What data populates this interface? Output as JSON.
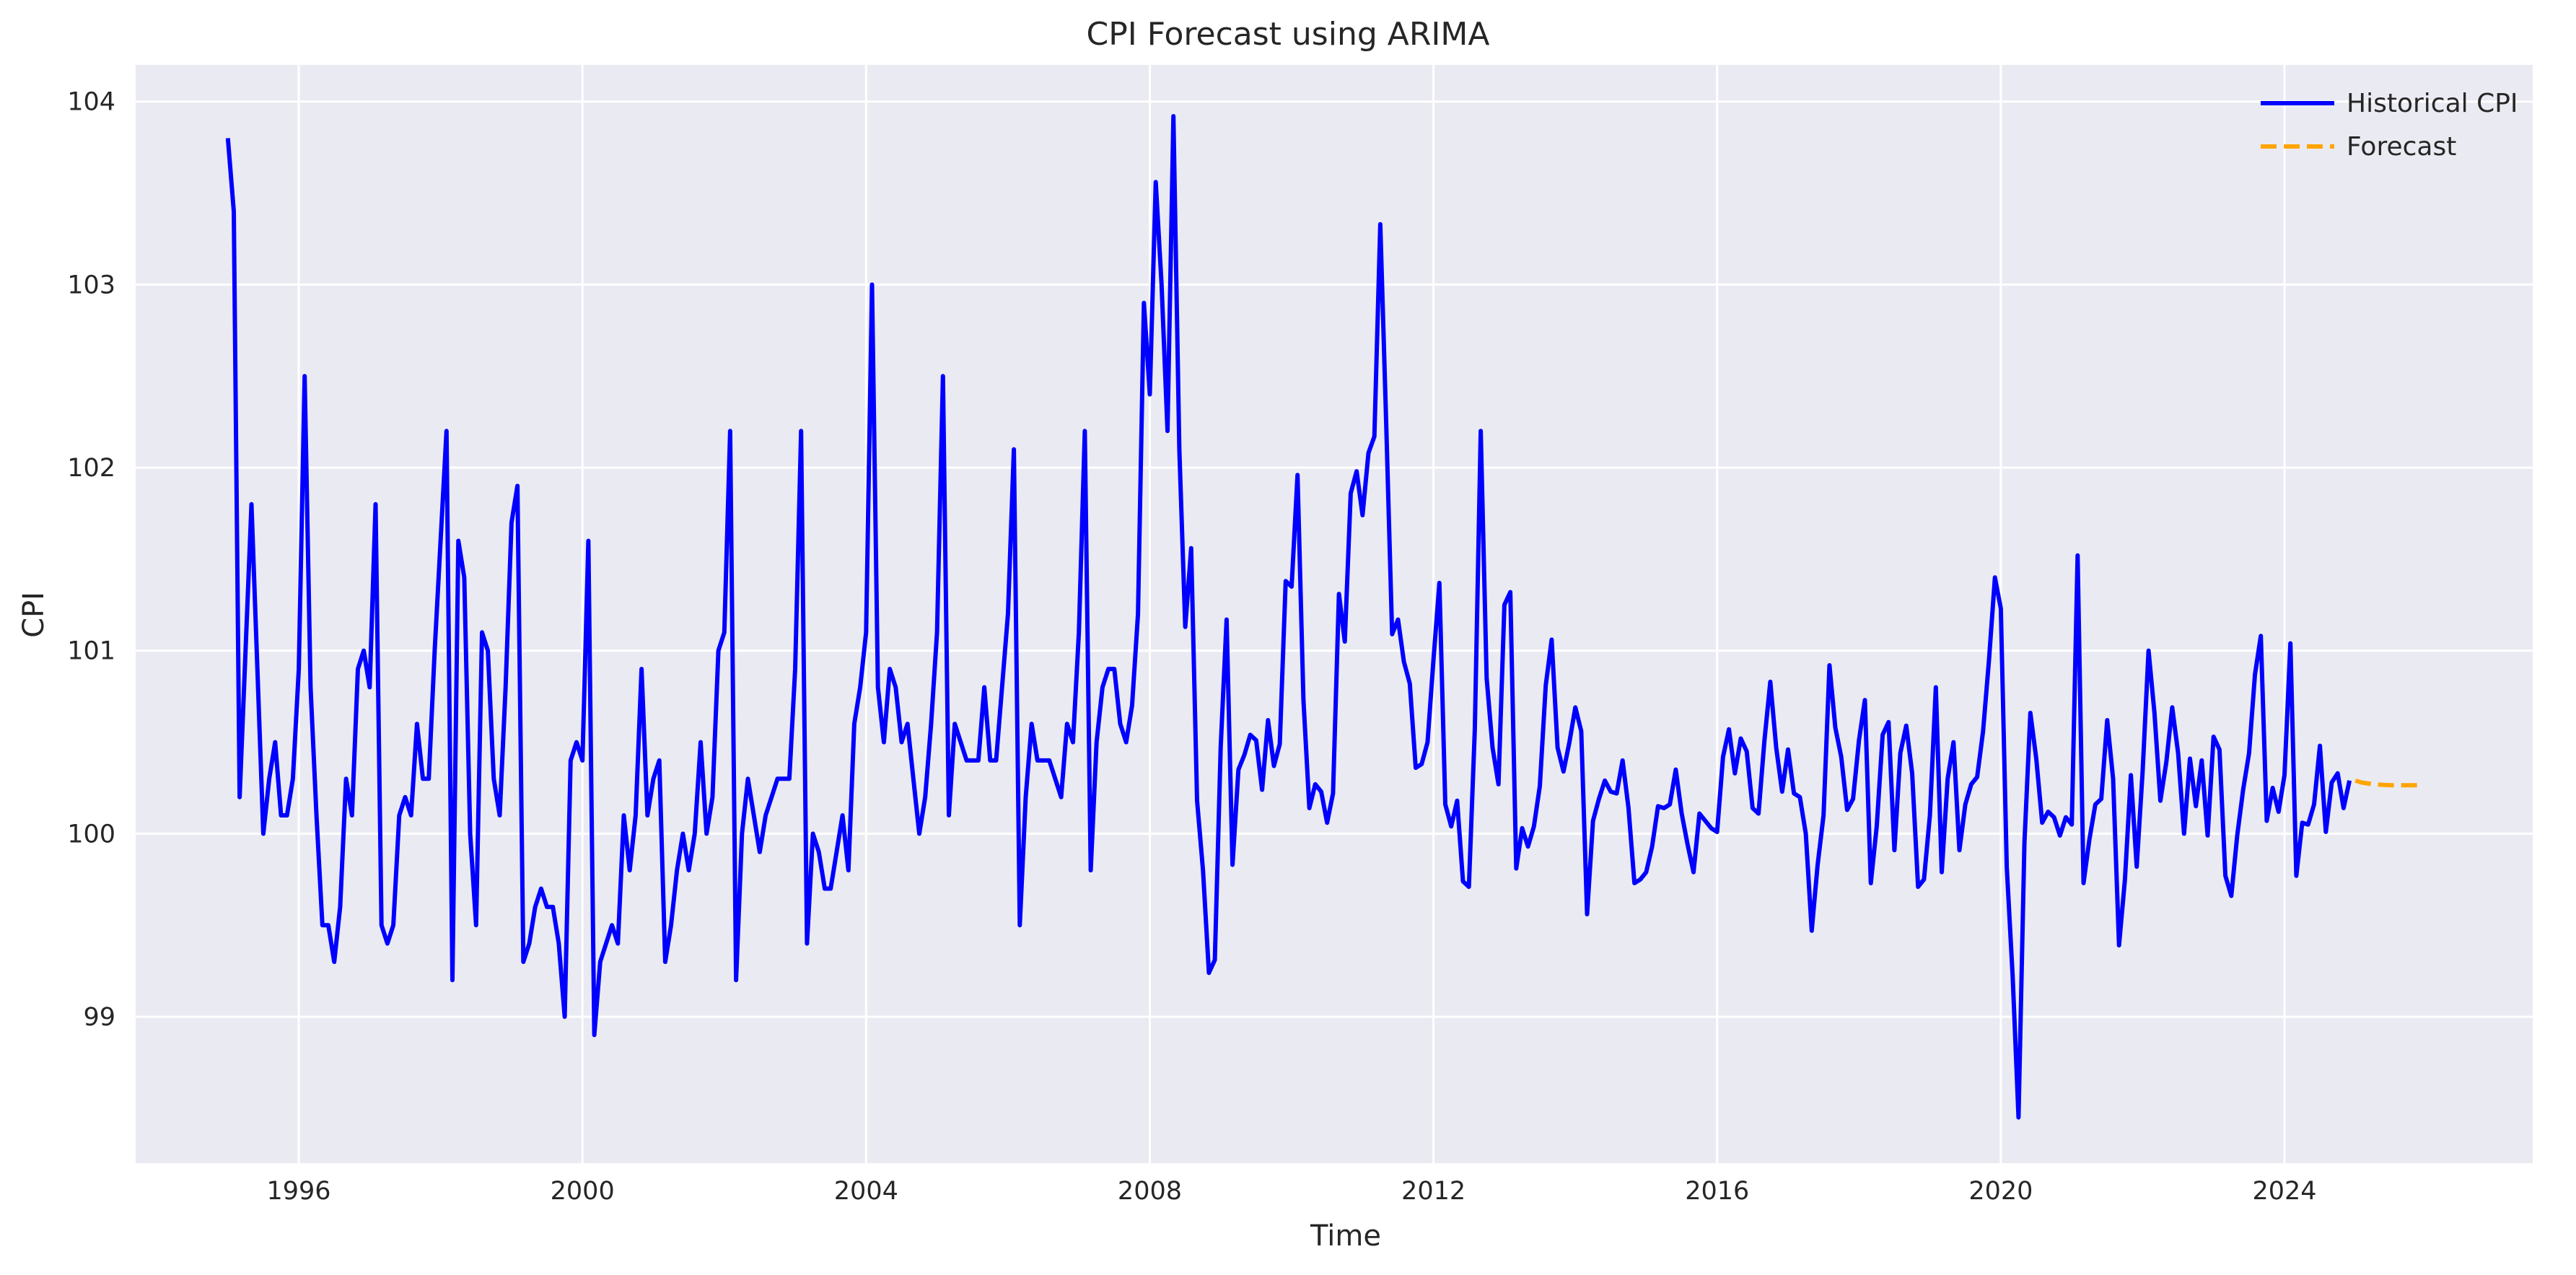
{
  "chart_data": {
    "type": "line",
    "title": "CPI Forecast using ARIMA",
    "xlabel": "Time",
    "ylabel": "CPI",
    "xlim": [
      1993.7,
      2027.5
    ],
    "ylim": [
      98.2,
      104.2
    ],
    "x_ticks": [
      1996,
      2000,
      2004,
      2008,
      2012,
      2016,
      2020,
      2024
    ],
    "y_ticks": [
      99,
      100,
      101,
      102,
      103,
      104
    ],
    "grid": true,
    "legend_position": "top-right",
    "colors": {
      "background": "#eaeaf2",
      "grid": "#ffffff",
      "historical": "#0000ff",
      "forecast": "#ffa500"
    },
    "series": [
      {
        "name": "Historical CPI",
        "style": "solid",
        "start": 1995.0,
        "step_months": 1,
        "values": [
          103.8,
          103.4,
          100.2,
          101.0,
          101.8,
          100.9,
          100.0,
          100.3,
          100.5,
          100.1,
          100.1,
          100.3,
          100.9,
          102.5,
          100.8,
          100.1,
          99.5,
          99.5,
          99.3,
          99.6,
          100.3,
          100.1,
          100.9,
          101.0,
          100.8,
          101.8,
          99.5,
          99.4,
          99.5,
          100.1,
          100.2,
          100.1,
          100.6,
          100.3,
          100.3,
          101.0,
          101.6,
          102.2,
          99.2,
          101.6,
          101.4,
          100.0,
          99.5,
          101.1,
          101.0,
          100.3,
          100.1,
          100.8,
          101.7,
          101.9,
          99.3,
          99.4,
          99.6,
          99.7,
          99.6,
          99.6,
          99.4,
          99.0,
          100.4,
          100.5,
          100.4,
          101.6,
          98.9,
          99.3,
          99.4,
          99.5,
          99.4,
          100.1,
          99.8,
          100.1,
          100.9,
          100.1,
          100.3,
          100.4,
          99.3,
          99.5,
          99.8,
          100.0,
          99.8,
          100.0,
          100.5,
          100.0,
          100.2,
          101.0,
          101.1,
          102.2,
          99.2,
          100.0,
          100.3,
          100.1,
          99.9,
          100.1,
          100.2,
          100.3,
          100.3,
          100.3,
          100.9,
          102.2,
          99.4,
          100.0,
          99.9,
          99.7,
          99.7,
          99.9,
          100.1,
          99.8,
          100.6,
          100.8,
          101.1,
          103.0,
          100.8,
          100.5,
          100.9,
          100.8,
          100.5,
          100.6,
          100.3,
          100.0,
          100.2,
          100.6,
          101.1,
          102.5,
          100.1,
          100.6,
          100.5,
          100.4,
          100.4,
          100.4,
          100.8,
          100.4,
          100.4,
          100.8,
          101.2,
          102.1,
          99.5,
          100.2,
          100.6,
          100.4,
          100.4,
          100.4,
          100.3,
          100.2,
          100.6,
          100.5,
          101.1,
          102.2,
          99.8,
          100.5,
          100.8,
          100.9,
          100.9,
          100.6,
          100.5,
          100.7,
          101.2,
          102.9,
          102.4,
          103.56,
          103.0,
          102.2,
          103.92,
          102.1,
          101.13,
          101.56,
          100.18,
          99.8,
          99.24,
          99.31,
          100.47,
          101.17,
          99.83,
          100.35,
          100.43,
          100.54,
          100.51,
          100.24,
          100.62,
          100.37,
          100.49,
          101.38,
          101.35,
          101.96,
          100.73,
          100.14,
          100.27,
          100.23,
          100.06,
          100.22,
          101.31,
          101.05,
          101.86,
          101.98,
          101.74,
          102.08,
          102.17,
          103.33,
          102.24,
          101.09,
          101.17,
          100.94,
          100.82,
          100.36,
          100.38,
          100.5,
          100.95,
          101.37,
          100.16,
          100.04,
          100.18,
          99.74,
          99.71,
          100.57,
          102.2,
          100.85,
          100.47,
          100.27,
          101.25,
          101.32,
          99.81,
          100.03,
          99.93,
          100.04,
          100.26,
          100.81,
          101.06,
          100.47,
          100.34,
          100.5,
          100.69,
          100.56,
          99.56,
          100.07,
          100.19,
          100.29,
          100.23,
          100.22,
          100.4,
          100.14,
          99.73,
          99.75,
          99.79,
          99.93,
          100.15,
          100.14,
          100.16,
          100.35,
          100.11,
          99.94,
          99.79,
          100.11,
          100.07,
          100.03,
          100.01,
          100.42,
          100.57,
          100.33,
          100.52,
          100.45,
          100.14,
          100.11,
          100.51,
          100.83,
          100.47,
          100.23,
          100.46,
          100.22,
          100.2,
          100.0,
          99.47,
          99.83,
          100.1,
          100.92,
          100.58,
          100.42,
          100.13,
          100.19,
          100.51,
          100.73,
          99.73,
          100.04,
          100.54,
          100.61,
          99.91,
          100.44,
          100.59,
          100.33,
          99.71,
          99.75,
          100.1,
          100.8,
          99.79,
          100.3,
          100.5,
          99.91,
          100.16,
          100.27,
          100.31,
          100.56,
          100.95,
          101.4,
          101.23,
          99.82,
          99.22,
          98.45,
          99.95,
          100.66,
          100.41,
          100.06,
          100.12,
          100.09,
          99.99,
          100.09,
          100.05,
          101.52,
          99.73,
          99.97,
          100.16,
          100.19,
          100.62,
          100.3,
          99.39,
          99.75,
          100.32,
          99.82,
          100.34,
          101.0,
          100.66,
          100.18,
          100.39,
          100.69,
          100.44,
          100.0,
          100.41,
          100.15,
          100.4,
          99.99,
          100.53,
          100.46,
          99.77,
          99.66,
          99.99,
          100.24,
          100.44,
          100.87,
          101.08,
          100.07,
          100.25,
          100.12,
          100.32,
          101.04,
          99.77,
          100.06,
          100.05,
          100.16,
          100.48,
          100.01,
          100.28,
          100.33,
          100.14,
          100.29
        ]
      },
      {
        "name": "Forecast",
        "style": "dashed",
        "start": 2025.0,
        "step_months": 1,
        "values": [
          100.29,
          100.28,
          100.275,
          100.27,
          100.268,
          100.266,
          100.265,
          100.265,
          100.265,
          100.265,
          100.265,
          100.265
        ]
      }
    ]
  }
}
